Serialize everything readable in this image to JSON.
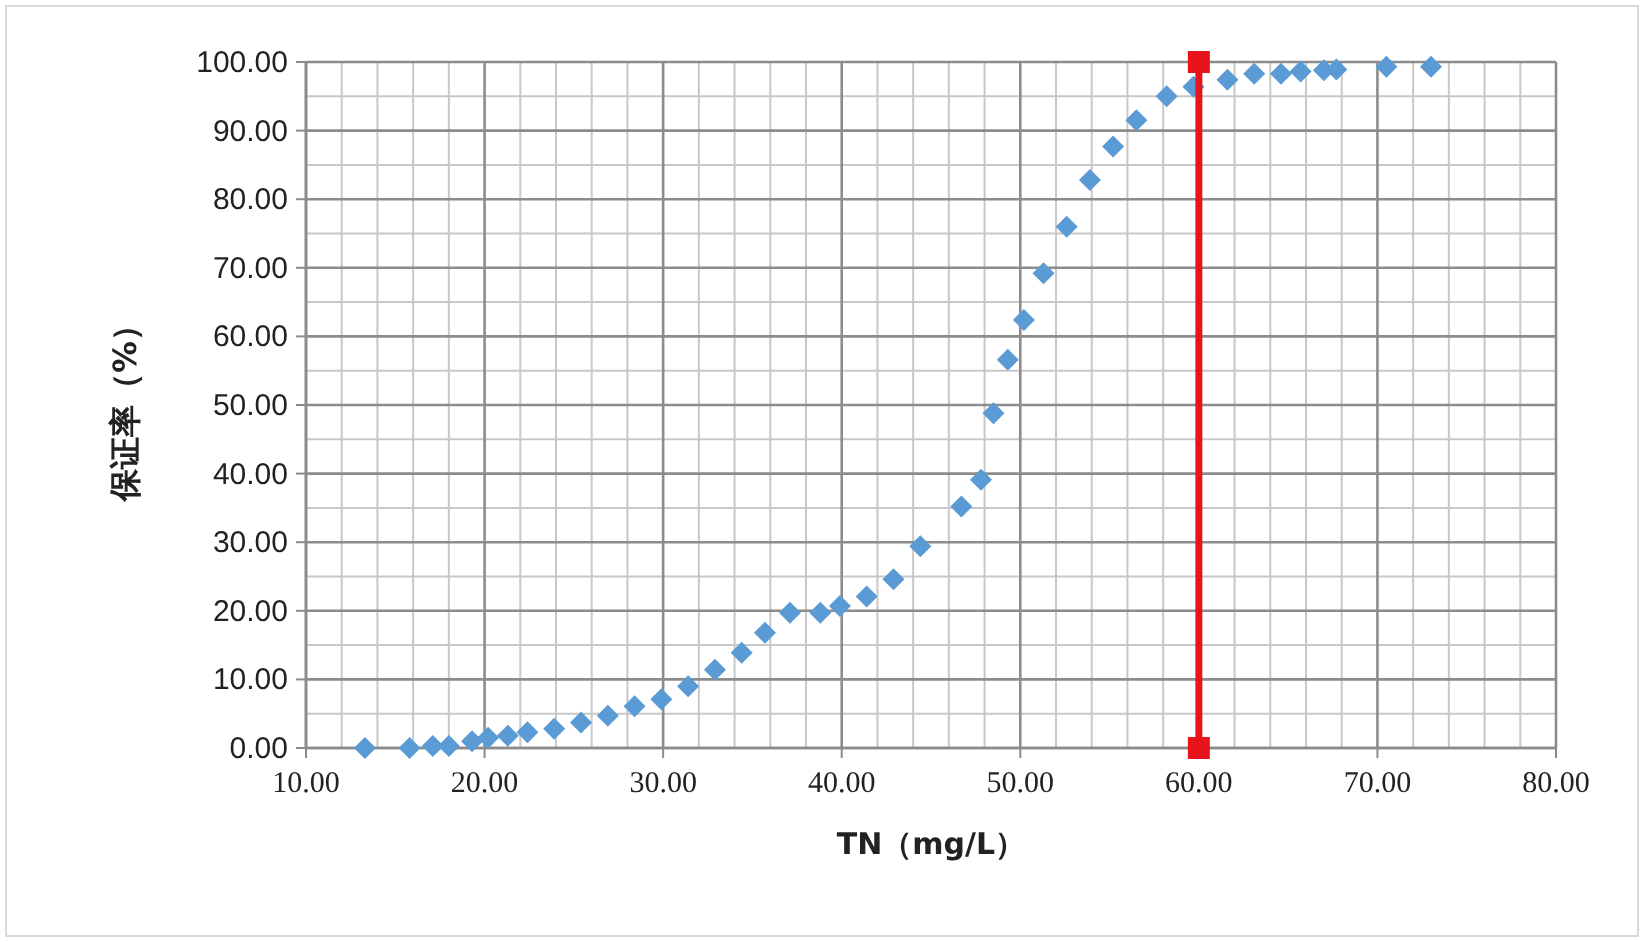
{
  "chart_data": {
    "type": "scatter",
    "xlabel": "TN（mg/L）",
    "ylabel": "保证率（%）",
    "xlim": [
      10,
      80
    ],
    "ylim": [
      0,
      100
    ],
    "xticks": [
      {
        "value": 10,
        "label": "10.00"
      },
      {
        "value": 20,
        "label": "20.00"
      },
      {
        "value": 30,
        "label": "30.00"
      },
      {
        "value": 40,
        "label": "40.00"
      },
      {
        "value": 50,
        "label": "50.00"
      },
      {
        "value": 60,
        "label": "60.00"
      },
      {
        "value": 70,
        "label": "70.00"
      },
      {
        "value": 80,
        "label": "80.00"
      }
    ],
    "yticks": [
      {
        "value": 0,
        "label": "0.00"
      },
      {
        "value": 10,
        "label": "10.00"
      },
      {
        "value": 20,
        "label": "20.00"
      },
      {
        "value": 30,
        "label": "30.00"
      },
      {
        "value": 40,
        "label": "40.00"
      },
      {
        "value": 50,
        "label": "50.00"
      },
      {
        "value": 60,
        "label": "60.00"
      },
      {
        "value": 70,
        "label": "70.00"
      },
      {
        "value": 80,
        "label": "80.00"
      },
      {
        "value": 90,
        "label": "90.00"
      },
      {
        "value": 100,
        "label": "100.00"
      }
    ],
    "grid": true,
    "marker": "diamond",
    "series": [
      {
        "color": "#5b9bd5",
        "x": [
          13.3,
          15.8,
          17.1,
          18.0,
          19.3,
          20.2,
          21.3,
          22.4,
          23.9,
          25.4,
          26.9,
          28.4,
          29.9,
          31.4,
          32.9,
          34.4,
          35.7,
          37.1,
          38.8,
          39.9,
          41.4,
          42.9,
          44.4,
          46.7,
          47.8,
          48.5,
          49.3,
          50.2,
          51.3,
          52.6,
          53.9,
          55.2,
          56.5,
          58.2,
          59.7,
          61.6,
          63.1,
          64.6,
          65.7,
          67.0,
          67.7,
          70.5,
          73.0
        ],
        "values": [
          0,
          0,
          0.3,
          0.3,
          1.0,
          1.5,
          1.8,
          2.3,
          2.8,
          3.7,
          4.7,
          6.1,
          7.1,
          9.0,
          11.4,
          13.9,
          16.8,
          19.7,
          19.7,
          20.7,
          22.1,
          24.6,
          29.4,
          35.2,
          39.1,
          48.8,
          56.6,
          62.4,
          69.2,
          76.0,
          82.8,
          87.7,
          91.5,
          95.0,
          96.4,
          97.4,
          98.3,
          98.3,
          98.6,
          98.8,
          98.9,
          99.3,
          99.3
        ]
      },
      {
        "type": "line",
        "color": "#e8141b",
        "marker": "square",
        "x": [
          60,
          60
        ],
        "values": [
          0,
          100
        ]
      }
    ]
  }
}
